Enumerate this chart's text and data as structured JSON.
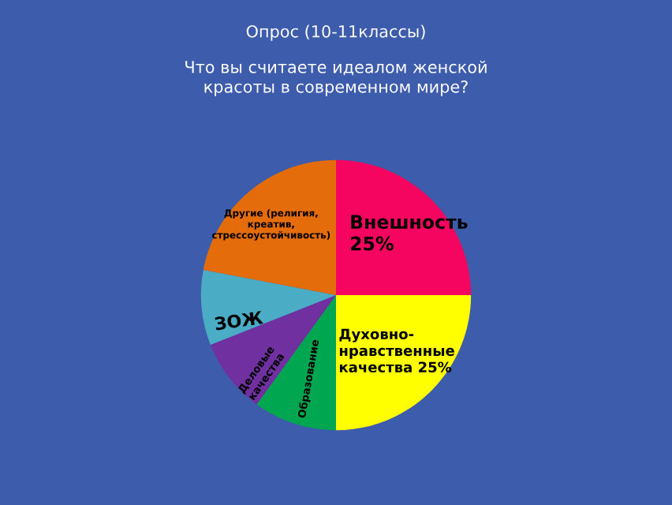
{
  "chart_data": {
    "type": "pie",
    "title": "Опрос (10-11классы)",
    "subtitle": "Что вы считаете идеалом женской\nкрасоты в современном мире?",
    "categories": [
      "Внешность",
      "Духовно-\nнравственные\nкачества",
      "Образование",
      "Деловые\nкачества",
      "ЗОЖ",
      "Другие (религия,\nкреатив,\nстрессоустойчивость)"
    ],
    "values": [
      25,
      25,
      10,
      9,
      9,
      22
    ],
    "value_labels": [
      "25%",
      "25%",
      null,
      null,
      null,
      null
    ],
    "colors": [
      "#f5055f",
      "#ffff00",
      "#00a650",
      "#7030a0",
      "#4bacc6",
      "#e46c0a"
    ],
    "legend": false
  }
}
